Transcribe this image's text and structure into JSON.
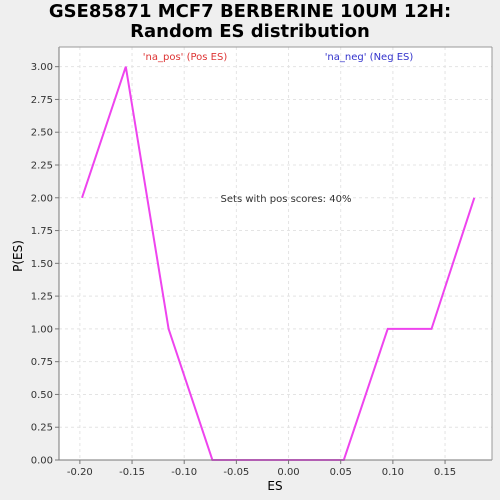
{
  "chart_data": {
    "type": "line",
    "title_lines": [
      "GSE85871 MCF7 BERBERINE 10UM 12H:",
      "Random ES distribution"
    ],
    "xlabel": "ES",
    "ylabel": "P(ES)",
    "xlim": [
      -0.22,
      0.195
    ],
    "ylim": [
      0,
      3.15
    ],
    "xticks": [
      -0.2,
      -0.15,
      -0.1,
      -0.05,
      0.0,
      0.05,
      0.1,
      0.15
    ],
    "xtick_labels": [
      "-0.20",
      "-0.15",
      "-0.10",
      "-0.05",
      "0.00",
      "0.05",
      "0.10",
      "0.15"
    ],
    "yticks": [
      0,
      0.25,
      0.5,
      0.75,
      1.0,
      1.25,
      1.5,
      1.75,
      2.0,
      2.25,
      2.5,
      2.75,
      3.0
    ],
    "ytick_labels": [
      "0.00",
      "0.25",
      "0.50",
      "0.75",
      "1.00",
      "1.25",
      "1.50",
      "1.75",
      "2.00",
      "2.25",
      "2.50",
      "2.75",
      "3.00"
    ],
    "grid": true,
    "series": [
      {
        "color": "#ee44ee",
        "x": [
          -0.198,
          -0.156,
          -0.115,
          -0.073,
          -0.031,
          0.011,
          0.053,
          0.095,
          0.137,
          0.178
        ],
        "y": [
          2,
          3,
          1,
          0,
          0,
          0,
          0,
          1,
          1,
          2
        ]
      }
    ],
    "annotations": {
      "pos_label": "'na_pos' (Pos ES)",
      "pos_color": "#dd3333",
      "neg_label": "'na_neg' (Neg ES)",
      "neg_color": "#3333cc",
      "center_text": "Sets with pos scores: 40%"
    }
  }
}
